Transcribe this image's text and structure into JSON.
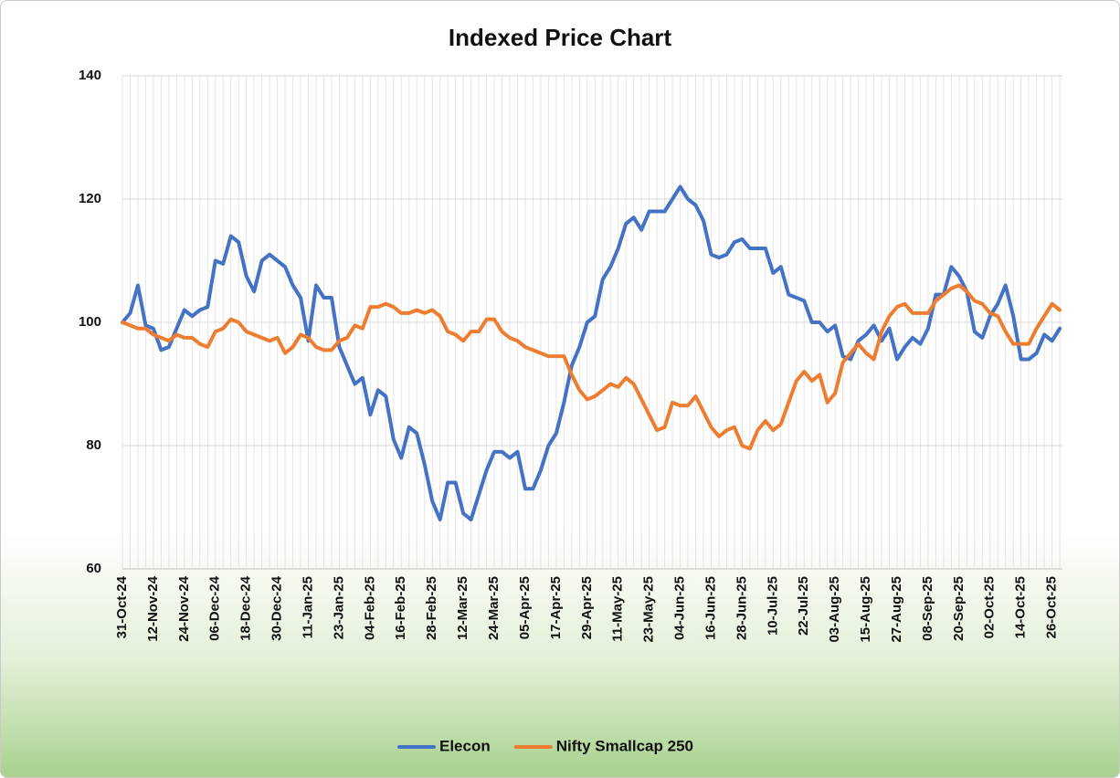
{
  "chart_data": {
    "type": "line",
    "title": "Indexed Price Chart",
    "categories": [
      "31-Oct-24",
      null,
      null,
      null,
      "12-Nov-24",
      null,
      null,
      null,
      "24-Nov-24",
      null,
      null,
      null,
      "06-Dec-24",
      null,
      null,
      null,
      "18-Dec-24",
      null,
      null,
      null,
      "30-Dec-24",
      null,
      null,
      null,
      "11-Jan-25",
      null,
      null,
      null,
      "23-Jan-25",
      null,
      null,
      null,
      "04-Feb-25",
      null,
      null,
      null,
      "16-Feb-25",
      null,
      null,
      null,
      "28-Feb-25",
      null,
      null,
      null,
      "12-Mar-25",
      null,
      null,
      null,
      "24-Mar-25",
      null,
      null,
      null,
      "05-Apr-25",
      null,
      null,
      null,
      "17-Apr-25",
      null,
      null,
      null,
      "29-Apr-25",
      null,
      null,
      null,
      "11-May-25",
      null,
      null,
      null,
      "23-May-25",
      null,
      null,
      null,
      "04-Jun-25",
      null,
      null,
      null,
      "16-Jun-25",
      null,
      null,
      null,
      "28-Jun-25",
      null,
      null,
      null,
      "10-Jul-25",
      null,
      null,
      null,
      "22-Jul-25",
      null,
      null,
      null,
      "03-Aug-25",
      null,
      null,
      null,
      "15-Aug-25",
      null,
      null,
      null,
      "27-Aug-25",
      null,
      null,
      null,
      "08-Sep-25",
      null,
      null,
      null,
      "20-Sep-25",
      null,
      null,
      null,
      "02-Oct-25",
      null,
      null,
      null,
      "14-Oct-25",
      null,
      null,
      null,
      "26-Oct-25",
      null
    ],
    "series": [
      {
        "name": "Elecon",
        "color": "#4472c4",
        "values": [
          100,
          101.5,
          106,
          99.5,
          99,
          95.5,
          96,
          99,
          102,
          101,
          102,
          102.5,
          110,
          109.5,
          114,
          113,
          107.5,
          105,
          110,
          111,
          110,
          109,
          106,
          104,
          97,
          106,
          104,
          104,
          96,
          93,
          90,
          91,
          85,
          89,
          88,
          81,
          78,
          83,
          82,
          77,
          71,
          68,
          74,
          74,
          69,
          68,
          72,
          76,
          79,
          79,
          78,
          79,
          73,
          73,
          76,
          80,
          82,
          87,
          93,
          96,
          100,
          101,
          107,
          109,
          112,
          116,
          117,
          115,
          118,
          118,
          118,
          120,
          122,
          120,
          119,
          116.5,
          111,
          110.5,
          111,
          113,
          113.5,
          112,
          112,
          112,
          108,
          109,
          104.5,
          104,
          103.5,
          100,
          100,
          98.5,
          99.5,
          94.5,
          94,
          97,
          98,
          99.5,
          97,
          99,
          94,
          96,
          97.5,
          96.5,
          99,
          104.5,
          104.5,
          109,
          107.5,
          105,
          98.5,
          97.5,
          101,
          103,
          106,
          101,
          94,
          94,
          95,
          98,
          97,
          99
        ]
      },
      {
        "name": "Nifty Smallcap 250",
        "color": "#ed7d31",
        "values": [
          100,
          99.5,
          99,
          99,
          98,
          97.5,
          97,
          98,
          97.5,
          97.5,
          96.5,
          96,
          98.5,
          99,
          100.5,
          100,
          98.5,
          98,
          97.5,
          97,
          97.5,
          95,
          96,
          98,
          97.5,
          96,
          95.5,
          95.5,
          97,
          97.5,
          99.5,
          99,
          102.5,
          102.5,
          103,
          102.5,
          101.5,
          101.5,
          102,
          101.5,
          102,
          101,
          98.5,
          98,
          97,
          98.5,
          98.5,
          100.5,
          100.5,
          98.5,
          97.5,
          97,
          96,
          95.5,
          95,
          94.5,
          94.5,
          94.5,
          91.5,
          89,
          87.5,
          88,
          89,
          90,
          89.5,
          91,
          90,
          87.5,
          85,
          82.5,
          83,
          87,
          86.5,
          86.5,
          88,
          85.5,
          83,
          81.5,
          82.5,
          83,
          80,
          79.5,
          82.5,
          84,
          82.5,
          83.5,
          87,
          90.5,
          92,
          90.5,
          91.5,
          87,
          88.5,
          93.5,
          95,
          96.5,
          95,
          94,
          98.5,
          101,
          102.5,
          103,
          101.5,
          101.5,
          101.5,
          103.5,
          104.5,
          105.5,
          106,
          105,
          103.5,
          103,
          101.5,
          101,
          98.5,
          96.5,
          96.5,
          96.5,
          99,
          101,
          103,
          102
        ]
      }
    ],
    "ylim": [
      60,
      140
    ],
    "yticks": [
      60,
      80,
      100,
      120,
      140
    ],
    "grid": true,
    "legend": "bottom"
  }
}
